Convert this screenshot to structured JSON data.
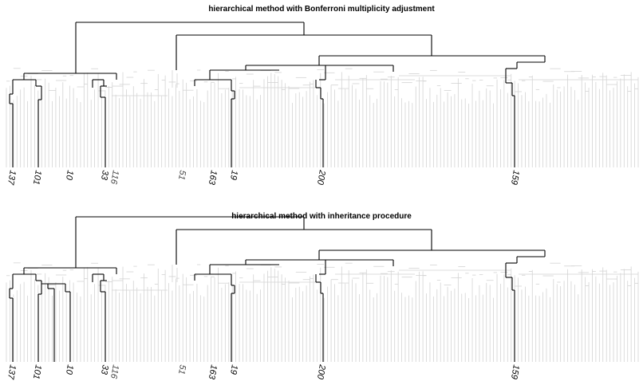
{
  "panels": [
    {
      "title": "hierarchical method with Bonferroni multiplicity adjustment",
      "labels": [
        "137",
        "101",
        "10",
        "33",
        "116",
        "51",
        "163",
        "19",
        "200",
        "159"
      ]
    },
    {
      "title": "hierarchical method with inheritance procedure",
      "labels": [
        "137",
        "101",
        "10",
        "33",
        "116",
        "51",
        "163",
        "19",
        "200",
        "159"
      ]
    }
  ],
  "colors": {
    "significant_branch": "#000000",
    "other_branch": "#d3d3d3"
  }
}
